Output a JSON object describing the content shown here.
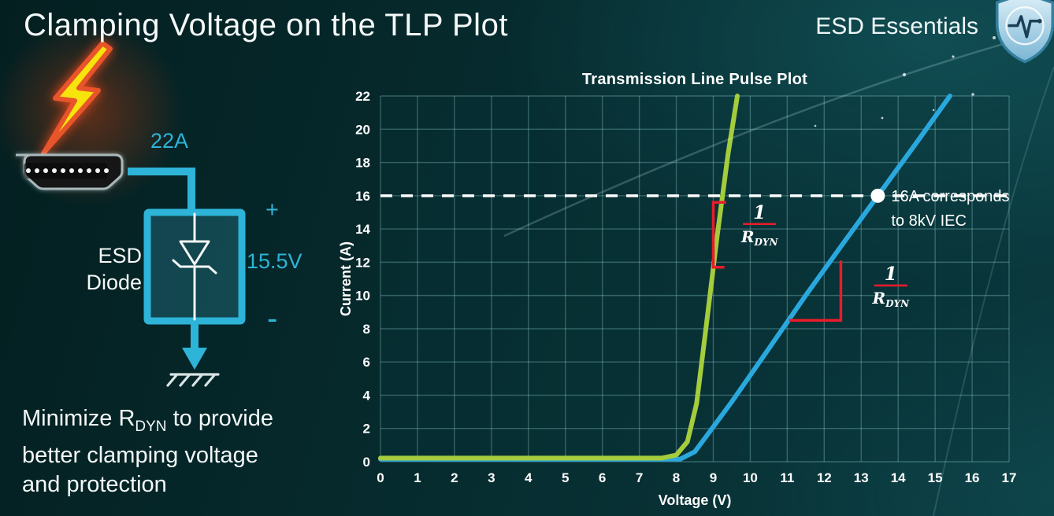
{
  "header": {
    "title": "Clamping Voltage on the TLP Plot",
    "brand": "ESD Essentials"
  },
  "icons": {
    "shield_logo": "shield-with-pulse",
    "lightning_bolt": "lightning-bolt",
    "hdmi_connector": "hdmi-port-side-view"
  },
  "colors": {
    "accent_cyan": "#2db4d8",
    "curve_green": "#a4cc3c",
    "curve_blue": "#2aa8de",
    "annotation_red": "#e81c2a",
    "text_white": "#f4f8f8"
  },
  "diagram": {
    "surge_label": "22A",
    "device_line1": "ESD",
    "device_line2": "Diode",
    "plus": "+",
    "voltage": "15.5V",
    "minus": "-",
    "note": {
      "line1_pre": "Minimize R",
      "line1_sub": "DYN",
      "line1_post": " to provide",
      "line2": "better clamping voltage",
      "line3": "and protection"
    }
  },
  "chart_data": {
    "type": "line",
    "title": "Transmission Line Pulse Plot",
    "xlabel": "Voltage (V)",
    "ylabel": "Current (A)",
    "xlim": [
      0,
      17
    ],
    "ylim": [
      0,
      22
    ],
    "xticks": [
      0,
      1,
      2,
      3,
      4,
      5,
      6,
      7,
      8,
      9,
      10,
      11,
      12,
      13,
      14,
      15,
      16,
      17
    ],
    "yticks": [
      0,
      2,
      4,
      6,
      8,
      10,
      12,
      14,
      16,
      18,
      20,
      22
    ],
    "grid": true,
    "legend": "none",
    "plot_bg": "rgba(10,52,58,0.35)",
    "grid_color": "rgba(150,210,210,0.32)",
    "series": [
      {
        "name": "blue-curve-higher-rdyn",
        "color": "#2aa8de",
        "points": [
          [
            0,
            0.15
          ],
          [
            8.1,
            0.15
          ],
          [
            8.5,
            0.6
          ],
          [
            8.9,
            1.8
          ],
          [
            9.5,
            3.6
          ],
          [
            10.5,
            6.8
          ],
          [
            11.5,
            10.0
          ],
          [
            12.5,
            13.1
          ],
          [
            13.45,
            16.0
          ],
          [
            14.5,
            19.2
          ],
          [
            15.4,
            22.0
          ]
        ]
      },
      {
        "name": "green-curve-lower-rdyn",
        "color": "#a4cc3c",
        "points": [
          [
            0,
            0.22
          ],
          [
            7.6,
            0.22
          ],
          [
            8.0,
            0.4
          ],
          [
            8.3,
            1.2
          ],
          [
            8.55,
            3.5
          ],
          [
            8.8,
            8.0
          ],
          [
            9.1,
            13.5
          ],
          [
            9.4,
            18.5
          ],
          [
            9.65,
            22.0
          ]
        ]
      }
    ],
    "reference_line": {
      "y": 16,
      "color": "#ffffff",
      "style": "dashed"
    },
    "marker": {
      "x": 13.45,
      "y": 16,
      "color": "#ffffff",
      "label_line1": "16A corresponds",
      "label_line2": "to 8kV IEC"
    },
    "slope_indicators": [
      {
        "points": [
          [
            9.35,
            15.6
          ],
          [
            9.0,
            15.6
          ],
          [
            9.0,
            11.7
          ],
          [
            9.3,
            11.7
          ]
        ],
        "frac_x": 10.25,
        "frac_y": 14.3
      },
      {
        "points": [
          [
            11.05,
            8.5
          ],
          [
            12.45,
            8.5
          ],
          [
            12.45,
            12.1
          ]
        ],
        "frac_x": 13.8,
        "frac_y": 10.6
      }
    ],
    "fraction_label": {
      "numerator": "1",
      "denominator": "R",
      "denominator_sub": "DYN",
      "color": "#e81c2a"
    }
  }
}
